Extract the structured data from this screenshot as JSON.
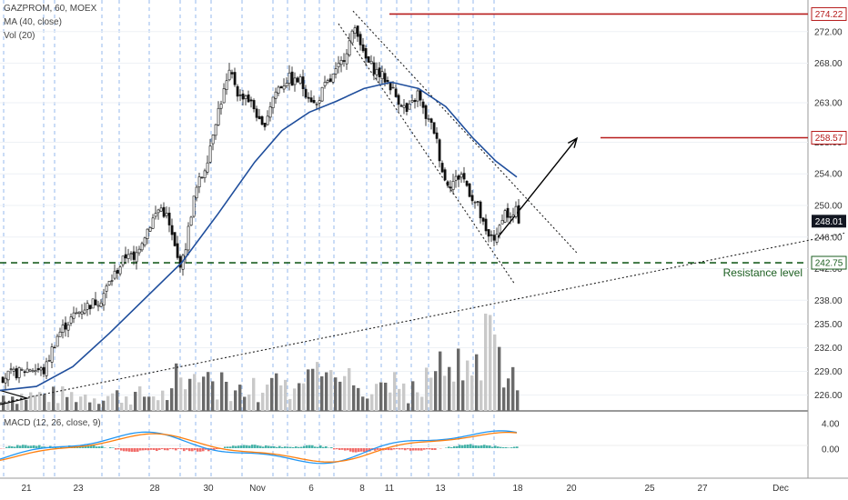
{
  "legend": {
    "symbol": "GAZPROM, 60, MOEX",
    "ma": "MA (40, close)",
    "vol": "Vol (20)",
    "macd": "MACD (12, 26, close, 9)"
  },
  "annotations": {
    "resistance_label": "Resistance level"
  },
  "colors": {
    "up": "#26a69a",
    "down": "#ef5350",
    "candle": "#111111",
    "ma": "#1f4e9c",
    "level": "#b71c1c",
    "resistance": "#1b5e20",
    "macd_line": "#2196f3",
    "signal_line": "#ff7f0e",
    "price_tag_dark": "#131722"
  },
  "chart_data": {
    "type": "candlestick",
    "x_tick_labels": [
      "21",
      "23",
      "28",
      "30",
      "Nov",
      "6",
      "8",
      "11",
      "13",
      "18",
      "20",
      "25",
      "27",
      "Dec"
    ],
    "price_axis_ticks": [
      "272.00",
      "268.00",
      "263.00",
      "258.00",
      "254.00",
      "250.00",
      "246.00",
      "242.00",
      "238.00",
      "235.00",
      "232.00",
      "229.00",
      "226.00"
    ],
    "macd_axis_ticks": [
      "4.00",
      "0.00"
    ],
    "ylim": [
      224,
      276
    ],
    "price_tags": [
      {
        "label": "274.22",
        "value": 274.22,
        "style": "level"
      },
      {
        "label": "258.57",
        "value": 258.57,
        "style": "level"
      },
      {
        "label": "248.01",
        "value": 248.01,
        "style": "dark"
      },
      {
        "label": "242.75",
        "value": 242.75,
        "style": "resistance"
      }
    ],
    "close_path": [
      [
        0,
        228.2
      ],
      [
        10,
        228.6
      ],
      [
        22,
        228.9
      ],
      [
        32,
        229.4
      ],
      [
        48,
        229.0
      ],
      [
        55,
        231.5
      ],
      [
        62,
        233.5
      ],
      [
        70,
        234.8
      ],
      [
        80,
        236.0
      ],
      [
        90,
        237.0
      ],
      [
        100,
        237.6
      ],
      [
        110,
        238.2
      ],
      [
        118,
        240.0
      ],
      [
        126,
        241.5
      ],
      [
        134,
        243.0
      ],
      [
        140,
        244.2
      ],
      [
        146,
        242.8
      ],
      [
        152,
        245.0
      ],
      [
        160,
        246.8
      ],
      [
        168,
        248.5
      ],
      [
        175,
        249.8
      ],
      [
        182,
        248.6
      ],
      [
        188,
        246.0
      ],
      [
        194,
        243.2
      ],
      [
        199,
        242.5
      ],
      [
        204,
        245.5
      ],
      [
        210,
        249.8
      ],
      [
        216,
        252.6
      ],
      [
        222,
        254.0
      ],
      [
        228,
        256.5
      ],
      [
        234,
        260.0
      ],
      [
        240,
        262.5
      ],
      [
        246,
        264.8
      ],
      [
        252,
        266.8
      ],
      [
        257,
        265.5
      ],
      [
        262,
        263.5
      ],
      [
        268,
        264.2
      ],
      [
        274,
        263.0
      ],
      [
        280,
        262.0
      ],
      [
        286,
        259.5
      ],
      [
        292,
        261.2
      ],
      [
        298,
        263.5
      ],
      [
        304,
        264.8
      ],
      [
        310,
        265.4
      ],
      [
        316,
        266.2
      ],
      [
        322,
        265.5
      ],
      [
        328,
        266.0
      ],
      [
        334,
        264.5
      ],
      [
        340,
        263.8
      ],
      [
        346,
        262.3
      ],
      [
        350,
        263.8
      ],
      [
        356,
        265.0
      ],
      [
        362,
        265.8
      ],
      [
        368,
        266.8
      ],
      [
        374,
        268.0
      ],
      [
        380,
        269.8
      ],
      [
        386,
        271.5
      ],
      [
        390,
        272.8
      ],
      [
        394,
        271.3
      ],
      [
        398,
        269.0
      ],
      [
        404,
        268.0
      ],
      [
        410,
        267.3
      ],
      [
        416,
        266.6
      ],
      [
        422,
        266.0
      ],
      [
        428,
        265.2
      ],
      [
        434,
        263.8
      ],
      [
        440,
        263.0
      ],
      [
        446,
        261.8
      ],
      [
        452,
        262.8
      ],
      [
        458,
        264.2
      ],
      [
        464,
        262.0
      ],
      [
        470,
        260.6
      ],
      [
        476,
        259.5
      ],
      [
        480,
        257.5
      ],
      [
        484,
        255.0
      ],
      [
        488,
        253.2
      ],
      [
        494,
        252.8
      ],
      [
        500,
        253.3
      ],
      [
        506,
        254.0
      ],
      [
        512,
        252.5
      ],
      [
        518,
        251.0
      ],
      [
        524,
        249.8
      ],
      [
        528,
        248.2
      ],
      [
        532,
        246.6
      ],
      [
        536,
        245.8
      ],
      [
        540,
        246.6
      ],
      [
        544,
        245.3
      ],
      [
        548,
        247.3
      ],
      [
        552,
        249.3
      ],
      [
        556,
        249.0
      ],
      [
        560,
        248.2
      ],
      [
        566,
        249.2
      ],
      [
        570,
        248.0
      ]
    ],
    "ma_path": [
      [
        0,
        226.6
      ],
      [
        40,
        227.1
      ],
      [
        80,
        229.6
      ],
      [
        120,
        233.8
      ],
      [
        160,
        238.3
      ],
      [
        200,
        242.8
      ],
      [
        240,
        249.0
      ],
      [
        280,
        255.5
      ],
      [
        310,
        259.5
      ],
      [
        340,
        261.8
      ],
      [
        370,
        263.2
      ],
      [
        400,
        264.8
      ],
      [
        430,
        265.6
      ],
      [
        460,
        264.8
      ],
      [
        490,
        262.5
      ],
      [
        520,
        258.5
      ],
      [
        545,
        255.6
      ],
      [
        568,
        253.6
      ]
    ],
    "channel_lines": [
      {
        "style": "dotted",
        "points": [
          [
            372,
            273.0
          ],
          [
            566,
            240.0
          ]
        ]
      },
      {
        "style": "dotted",
        "points": [
          [
            388,
            274.6
          ],
          [
            634,
            244.0
          ]
        ]
      },
      {
        "style": "dotted",
        "points": [
          [
            0,
            225.0
          ],
          [
            928,
            246.5
          ]
        ]
      }
    ],
    "arrow": {
      "points": [
        [
          546,
          245.8
        ],
        [
          634,
          258.5
        ]
      ]
    },
    "horizontal_levels": [
      {
        "value": 274.22,
        "x_start": 428,
        "style": "solid"
      },
      {
        "value": 258.57,
        "x_start": 660,
        "style": "solid"
      },
      {
        "value": 242.75,
        "x_start": 0,
        "style": "dashed"
      }
    ],
    "grid": true,
    "legend_position": "top-left"
  }
}
